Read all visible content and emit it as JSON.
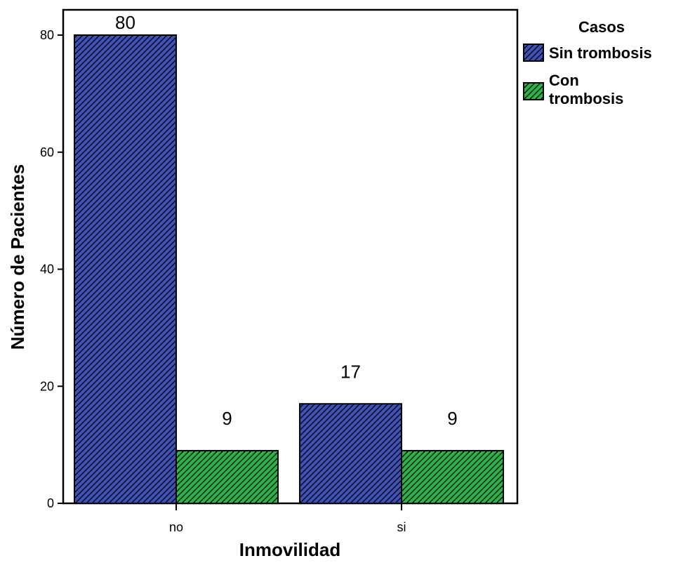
{
  "chart_data": {
    "type": "bar",
    "categories": [
      "no",
      "si"
    ],
    "series": [
      {
        "name": "Sin trombosis",
        "values": [
          80,
          17
        ],
        "color": "#3f51b5"
      },
      {
        "name": "Con trombosis",
        "values": [
          9,
          9
        ],
        "color": "#2db34a"
      }
    ],
    "xlabel": "Inmovilidad",
    "ylabel": "Número de Pacientes",
    "ylim": [
      0,
      80
    ],
    "yticks": [
      0,
      20,
      40,
      60,
      80
    ],
    "data_labels": true,
    "hatch": "diagonal",
    "grid": false,
    "legend": {
      "title": "Casos",
      "placement": "right",
      "entries": [
        {
          "lines": [
            "Sin trombosis"
          ]
        },
        {
          "lines": [
            "Con",
            "trombosis"
          ]
        }
      ]
    }
  }
}
